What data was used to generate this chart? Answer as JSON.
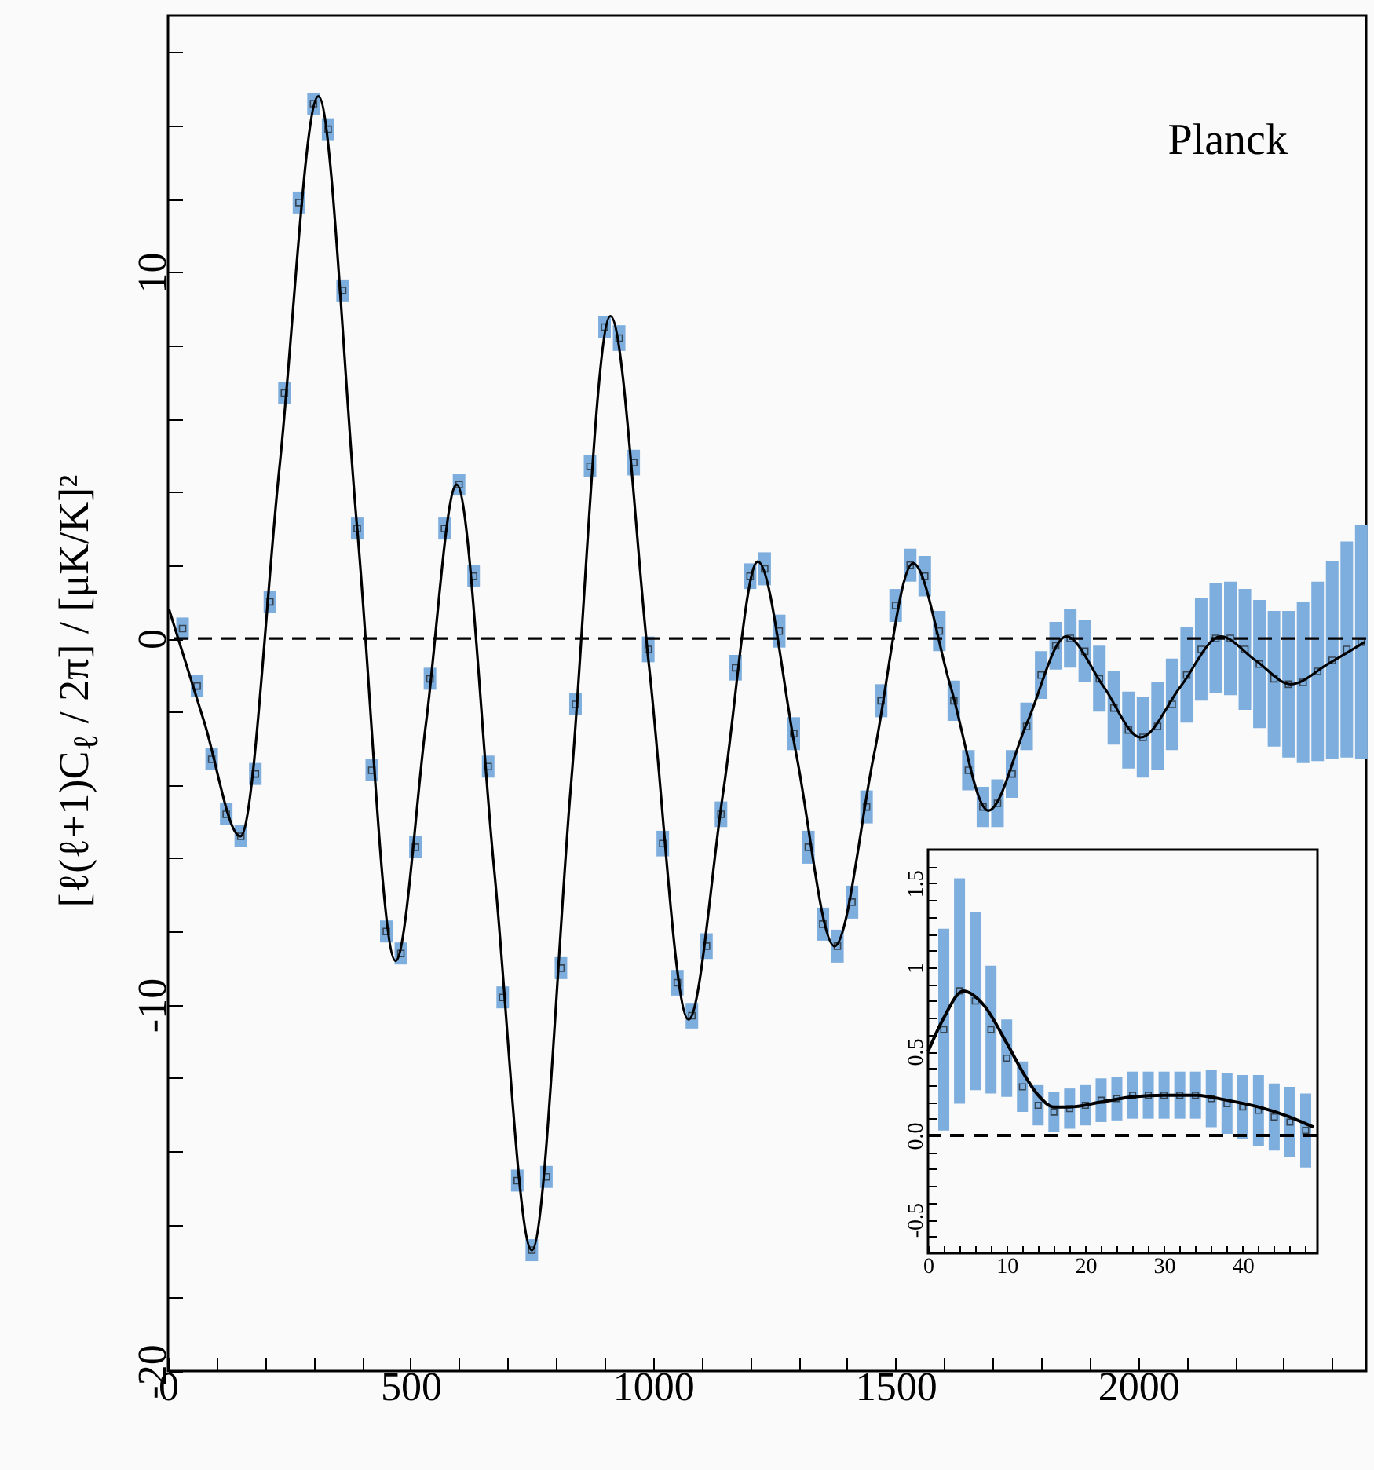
{
  "chart_data": [
    {
      "type": "line",
      "ylabel": "[ℓ(ℓ+1)C$_{ℓ}$ / 2π] / [μK/K]²",
      "annotations": [
        "Planck"
      ],
      "xlim": [
        0,
        2470
      ],
      "ylim": [
        -20,
        17
      ],
      "xticks": [
        0,
        {
          "value": 100,
          "label": null
        },
        {
          "value": 200,
          "label": null
        },
        {
          "value": 300,
          "label": null
        },
        {
          "value": 400,
          "label": null
        },
        500,
        {
          "value": 600,
          "label": null
        },
        {
          "value": 700,
          "label": null
        },
        {
          "value": 800,
          "label": null
        },
        {
          "value": 900,
          "label": null
        },
        1000,
        {
          "value": 1100,
          "label": null
        },
        {
          "value": 1200,
          "label": null
        },
        {
          "value": 1300,
          "label": null
        },
        {
          "value": 1400,
          "label": null
        },
        1500,
        {
          "value": 1600,
          "label": null
        },
        {
          "value": 1700,
          "label": null
        },
        {
          "value": 1800,
          "label": null
        },
        {
          "value": 1900,
          "label": null
        },
        2000,
        {
          "value": 2100,
          "label": null
        },
        {
          "value": 2200,
          "label": null
        },
        {
          "value": 2300,
          "label": null
        },
        {
          "value": 2400,
          "label": null
        }
      ],
      "yticks": [
        -20,
        {
          "value": -18,
          "label": null
        },
        {
          "value": -16,
          "label": null
        },
        {
          "value": -14,
          "label": null
        },
        {
          "value": -12,
          "label": null
        },
        -10,
        {
          "value": -8,
          "label": null
        },
        {
          "value": -6,
          "label": null
        },
        {
          "value": -4,
          "label": null
        },
        {
          "value": -2,
          "label": null
        },
        0,
        {
          "value": 2,
          "label": null
        },
        {
          "value": 4,
          "label": null
        },
        {
          "value": 6,
          "label": null
        },
        {
          "value": 8,
          "label": null
        },
        10,
        {
          "value": 12,
          "label": null
        },
        {
          "value": 14,
          "label": null
        },
        {
          "value": 16,
          "label": null
        }
      ],
      "ref_lines": [
        {
          "axis": "y",
          "value": 0,
          "color": "#000000",
          "line_style": "dashed"
        }
      ],
      "series": [
        {
          "type": "scatter",
          "marker": "square",
          "color": "#7eaedd",
          "x": [
            30,
            60,
            90,
            120,
            150,
            180,
            210,
            240,
            270,
            300,
            330,
            360,
            390,
            420,
            450,
            480,
            510,
            540,
            570,
            600,
            630,
            660,
            690,
            720,
            750,
            780,
            810,
            840,
            870,
            900,
            930,
            960,
            990,
            1020,
            1050,
            1080,
            1110,
            1140,
            1170,
            1200,
            1230,
            1260,
            1290,
            1320,
            1350,
            1380,
            1410,
            1440,
            1470,
            1500,
            1530,
            1560,
            1590,
            1620,
            1650,
            1680,
            1710,
            1740,
            1770,
            1800,
            1830,
            1860,
            1890,
            1920,
            1950,
            1980,
            2010,
            2040,
            2070,
            2100,
            2130,
            2160,
            2190,
            2220,
            2250,
            2280,
            2310,
            2340,
            2370,
            2400,
            2430,
            2460
          ],
          "values": [
            0.27,
            -1.3,
            -3.3,
            -4.8,
            -5.4,
            -3.7,
            1.0,
            6.7,
            11.9,
            14.6,
            13.9,
            9.5,
            3.0,
            -3.6,
            -8.0,
            -8.6,
            -5.7,
            -1.1,
            3.0,
            4.2,
            1.7,
            -3.5,
            -9.8,
            -14.8,
            -16.7,
            -14.7,
            -9.0,
            -1.8,
            4.7,
            8.5,
            8.2,
            4.8,
            -0.3,
            -5.6,
            -9.4,
            -10.3,
            -8.4,
            -4.8,
            -0.8,
            1.7,
            1.9,
            0.2,
            -2.6,
            -5.7,
            -7.8,
            -8.4,
            -7.2,
            -4.6,
            -1.7,
            0.9,
            2.0,
            1.7,
            0.2,
            -1.7,
            -3.6,
            -4.6,
            -4.5,
            -3.7,
            -2.4,
            -1.0,
            -0.2,
            0.0,
            -0.35,
            -1.1,
            -1.9,
            -2.5,
            -2.7,
            -2.4,
            -1.8,
            -1.0,
            -0.3,
            0.0,
            0.0,
            -0.3,
            -0.7,
            -1.1,
            -1.25,
            -1.2,
            -0.9,
            -0.6,
            -0.3,
            -0.1
          ],
          "errors": [
            0.3,
            0.3,
            0.3,
            0.3,
            0.3,
            0.3,
            0.3,
            0.3,
            0.3,
            0.3,
            0.3,
            0.3,
            0.3,
            0.3,
            0.3,
            0.3,
            0.3,
            0.3,
            0.3,
            0.3,
            0.3,
            0.3,
            0.3,
            0.3,
            0.3,
            0.3,
            0.3,
            0.3,
            0.3,
            0.3,
            0.35,
            0.35,
            0.35,
            0.35,
            0.35,
            0.35,
            0.35,
            0.35,
            0.35,
            0.35,
            0.45,
            0.45,
            0.45,
            0.45,
            0.45,
            0.45,
            0.45,
            0.45,
            0.45,
            0.45,
            0.45,
            0.55,
            0.55,
            0.55,
            0.55,
            0.55,
            0.65,
            0.65,
            0.65,
            0.65,
            0.65,
            0.8,
            0.85,
            0.9,
            1.0,
            1.05,
            1.1,
            1.2,
            1.25,
            1.3,
            1.4,
            1.5,
            1.55,
            1.65,
            1.75,
            1.85,
            2.0,
            2.2,
            2.45,
            2.7,
            2.95,
            3.2
          ]
        },
        {
          "type": "line",
          "color": "#000000",
          "x": [
            2,
            75,
            149,
            230,
            310,
            390,
            469,
            532,
            595,
            672,
            750,
            831,
            912,
            992,
            1073,
            1145,
            1216,
            1295,
            1374,
            1455,
            1536,
            1613,
            1691,
            1771,
            1852,
            1928,
            2005,
            2088,
            2170,
            2242,
            2315,
            2391,
            2467
          ],
          "values": [
            0.8,
            -2.3,
            -5.4,
            4.7,
            14.8,
            3.0,
            -8.8,
            -2.3,
            4.2,
            -6.25,
            -16.7,
            -3.95,
            8.8,
            -0.8,
            -10.4,
            -4.15,
            2.1,
            -3.15,
            -8.4,
            -3.2,
            2.05,
            -1.3,
            -4.7,
            -2.3,
            0.05,
            -1.3,
            -2.7,
            -1.3,
            0.05,
            -0.6,
            -1.25,
            -0.7,
            -0.1
          ]
        }
      ]
    },
    {
      "type": "line",
      "xlim": [
        0,
        49.5
      ],
      "ylim": [
        -0.7,
        1.7
      ],
      "xticks": [
        0,
        {
          "value": 2,
          "label": null
        },
        {
          "value": 4,
          "label": null
        },
        {
          "value": 6,
          "label": null
        },
        {
          "value": 8,
          "label": null
        },
        10,
        {
          "value": 12,
          "label": null
        },
        {
          "value": 14,
          "label": null
        },
        {
          "value": 16,
          "label": null
        },
        {
          "value": 18,
          "label": null
        },
        20,
        {
          "value": 22,
          "label": null
        },
        {
          "value": 24,
          "label": null
        },
        {
          "value": 26,
          "label": null
        },
        {
          "value": 28,
          "label": null
        },
        30,
        {
          "value": 32,
          "label": null
        },
        {
          "value": 34,
          "label": null
        },
        {
          "value": 36,
          "label": null
        },
        {
          "value": 38,
          "label": null
        },
        40,
        {
          "value": 42,
          "label": null
        },
        {
          "value": 44,
          "label": null
        },
        {
          "value": 46,
          "label": null
        },
        {
          "value": 48,
          "label": null
        }
      ],
      "yticks": [
        {
          "value": -0.6,
          "label": null
        },
        -0.5,
        {
          "value": -0.4,
          "label": null
        },
        {
          "value": -0.3,
          "label": null
        },
        {
          "value": -0.2,
          "label": null
        },
        {
          "value": -0.1,
          "label": null
        },
        {
          "value": 0,
          "label": "0.0"
        },
        {
          "value": 0.1,
          "label": null
        },
        {
          "value": 0.2,
          "label": null
        },
        {
          "value": 0.3,
          "label": null
        },
        {
          "value": 0.4,
          "label": null
        },
        0.5,
        {
          "value": 0.6,
          "label": null
        },
        {
          "value": 0.7,
          "label": null
        },
        {
          "value": 0.8,
          "label": null
        },
        {
          "value": 0.9,
          "label": null
        },
        1,
        {
          "value": 1.1,
          "label": null
        },
        {
          "value": 1.2,
          "label": null
        },
        {
          "value": 1.3,
          "label": null
        },
        {
          "value": 1.4,
          "label": null
        },
        1.5,
        {
          "value": 1.6,
          "label": null
        }
      ],
      "ref_lines": [
        {
          "axis": "y",
          "value": 0,
          "color": "#000000",
          "line_style": "dashed"
        }
      ],
      "series": [
        {
          "type": "scatter",
          "marker": "square",
          "color": "#7eaedd",
          "x": [
            2,
            4,
            6,
            8,
            10,
            12,
            14,
            16,
            18,
            20,
            22,
            24,
            26,
            28,
            30,
            32,
            34,
            36,
            38,
            40,
            42,
            44,
            46,
            48
          ],
          "values": [
            0.63,
            0.86,
            0.8,
            0.63,
            0.46,
            0.29,
            0.18,
            0.14,
            0.16,
            0.18,
            0.21,
            0.22,
            0.24,
            0.24,
            0.24,
            0.24,
            0.24,
            0.22,
            0.19,
            0.17,
            0.15,
            0.11,
            0.08,
            0.03
          ],
          "errors": [
            0.6,
            0.67,
            0.53,
            0.38,
            0.23,
            0.15,
            0.12,
            0.12,
            0.12,
            0.12,
            0.13,
            0.13,
            0.14,
            0.14,
            0.14,
            0.14,
            0.14,
            0.17,
            0.18,
            0.19,
            0.21,
            0.2,
            0.21,
            0.22
          ]
        },
        {
          "type": "line",
          "color": "#000000",
          "x": [
            0,
            2,
            4.5,
            7,
            10,
            12,
            14,
            16,
            18,
            22,
            26,
            30,
            34,
            38,
            42,
            46,
            49
          ],
          "values": [
            0.5,
            0.7,
            0.86,
            0.78,
            0.55,
            0.38,
            0.24,
            0.17,
            0.17,
            0.2,
            0.23,
            0.24,
            0.24,
            0.21,
            0.17,
            0.11,
            0.05
          ]
        }
      ]
    }
  ]
}
